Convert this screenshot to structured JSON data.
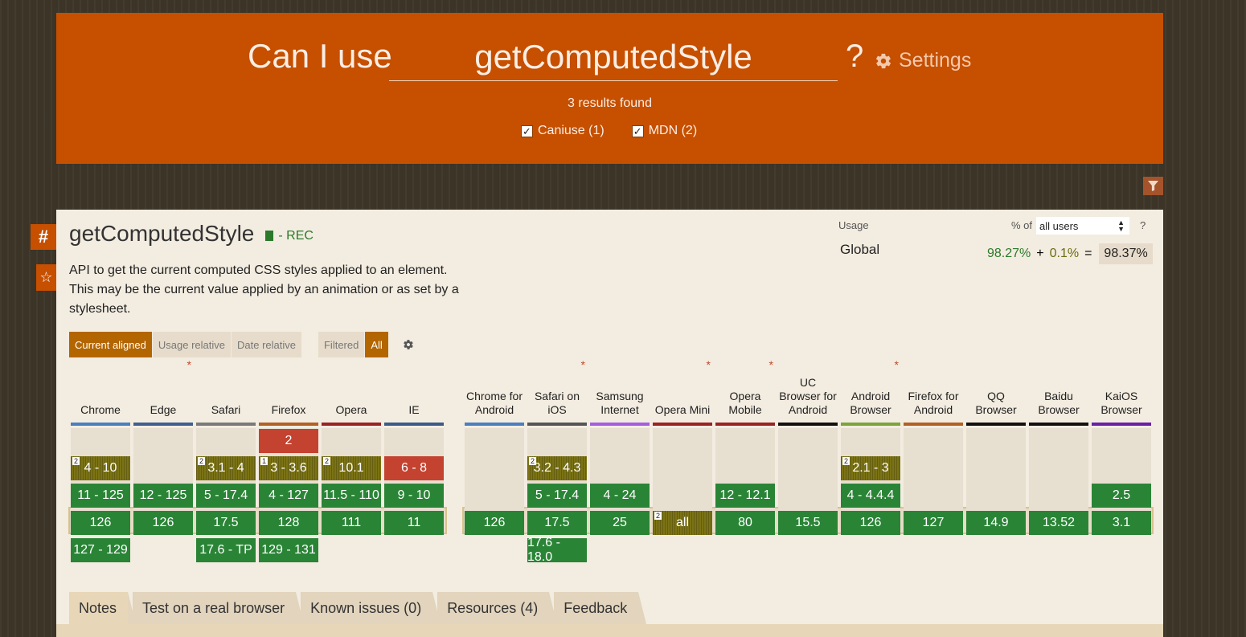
{
  "header": {
    "label": "Can I use",
    "search_value": "getComputedStyle",
    "qmark": "?",
    "settings_label": "Settings",
    "results": "3 results found",
    "filters": [
      {
        "label": "Caniuse (1)",
        "checked": true
      },
      {
        "label": "MDN (2)",
        "checked": true
      }
    ]
  },
  "side": {
    "anchor": "#",
    "star": "☆"
  },
  "feature": {
    "title": "getComputedStyle",
    "spec": "- REC",
    "description": "API to get the current computed CSS styles applied to an element. This may be the current value applied by an animation or as set by a stylesheet."
  },
  "usage": {
    "label": "Usage",
    "pct_of": "% of",
    "users_option": "all users",
    "help": "?",
    "region": "Global",
    "supported": "98.27%",
    "plus": "+",
    "partial": "0.1%",
    "equals": "=",
    "total": "98.37%"
  },
  "views": {
    "current": "Current aligned",
    "usage_rel": "Usage relative",
    "date_rel": "Date relative",
    "filtered": "Filtered",
    "all": "All"
  },
  "browsers": [
    {
      "name": "Chrome",
      "color": "#4a7fbf",
      "asterisk": false,
      "cells": [
        {
          "label": "4 - 10",
          "status": "a",
          "note": "2",
          "row": 1
        },
        {
          "label": "11 - 125",
          "status": "y",
          "row": 2
        },
        {
          "label": "126",
          "status": "y",
          "row": 3
        },
        {
          "label": "127 - 129",
          "status": "y",
          "row": 4
        }
      ]
    },
    {
      "name": "Edge",
      "color": "#3e5f8f",
      "asterisk": true,
      "cells": [
        {
          "label": "12 - 125",
          "status": "y",
          "row": 2
        },
        {
          "label": "126",
          "status": "y",
          "row": 3
        }
      ]
    },
    {
      "name": "Safari",
      "color": "#7a7a7a",
      "asterisk": false,
      "cells": [
        {
          "label": "3.1 - 4",
          "status": "a",
          "note": "2",
          "row": 1
        },
        {
          "label": "5 - 17.4",
          "status": "y",
          "row": 2
        },
        {
          "label": "17.5",
          "status": "y",
          "row": 3
        },
        {
          "label": "17.6 - TP",
          "status": "y",
          "row": 4
        }
      ]
    },
    {
      "name": "Firefox",
      "color": "#b26024",
      "asterisk": false,
      "cells": [
        {
          "label": "2",
          "status": "n",
          "row": 0
        },
        {
          "label": "3 - 3.6",
          "status": "a",
          "note": "1",
          "row": 1
        },
        {
          "label": "4 - 127",
          "status": "y",
          "row": 2
        },
        {
          "label": "128",
          "status": "y",
          "row": 3
        },
        {
          "label": "129 - 131",
          "status": "y",
          "row": 4
        }
      ]
    },
    {
      "name": "Opera",
      "color": "#9b2222",
      "asterisk": false,
      "cells": [
        {
          "label": "10.1",
          "status": "a",
          "note": "2",
          "row": 1
        },
        {
          "label": "11.5 - 110",
          "status": "y",
          "row": 2
        },
        {
          "label": "111",
          "status": "y",
          "row": 3
        }
      ]
    },
    {
      "name": "IE",
      "color": "#3b5a8a",
      "asterisk": false,
      "cells": [
        {
          "label": "6 - 8",
          "status": "n",
          "row": 1
        },
        {
          "label": "9 - 10",
          "status": "y",
          "row": 2
        },
        {
          "label": "11",
          "status": "y",
          "row": 3
        }
      ]
    },
    {
      "name": "Chrome for Android",
      "color": "#4a7fbf",
      "asterisk": false,
      "cells": [
        {
          "label": "126",
          "status": "y",
          "row": 3
        }
      ]
    },
    {
      "name": "Safari on iOS",
      "color": "#555555",
      "asterisk": true,
      "cells": [
        {
          "label": "3.2 - 4.3",
          "status": "a",
          "note": "2",
          "row": 1
        },
        {
          "label": "5 - 17.4",
          "status": "y",
          "row": 2
        },
        {
          "label": "17.5",
          "status": "y",
          "row": 3
        },
        {
          "label": "17.6 - 18.0",
          "status": "y",
          "row": 4
        }
      ]
    },
    {
      "name": "Samsung Internet",
      "color": "#a35ee0",
      "asterisk": false,
      "cells": [
        {
          "label": "4 - 24",
          "status": "y",
          "row": 2
        },
        {
          "label": "25",
          "status": "y",
          "row": 3
        }
      ]
    },
    {
      "name": "Opera Mini",
      "color": "#9b2222",
      "asterisk": true,
      "cells": [
        {
          "label": "all",
          "status": "a",
          "note": "2",
          "row": 3
        }
      ]
    },
    {
      "name": "Opera Mobile",
      "color": "#9b2222",
      "asterisk": true,
      "cells": [
        {
          "label": "12 - 12.1",
          "status": "y",
          "row": 2
        },
        {
          "label": "80",
          "status": "y",
          "row": 3
        }
      ]
    },
    {
      "name": "UC Browser for Android",
      "color": "#111111",
      "asterisk": false,
      "cells": [
        {
          "label": "15.5",
          "status": "y",
          "row": 3
        }
      ]
    },
    {
      "name": "Android Browser",
      "color": "#7ca43a",
      "asterisk": true,
      "cells": [
        {
          "label": "2.1 - 3",
          "status": "a",
          "note": "2",
          "row": 1
        },
        {
          "label": "4 - 4.4.4",
          "status": "y",
          "row": 2
        },
        {
          "label": "126",
          "status": "y",
          "row": 3
        }
      ]
    },
    {
      "name": "Firefox for Android",
      "color": "#b26024",
      "asterisk": false,
      "cells": [
        {
          "label": "127",
          "status": "y",
          "row": 3
        }
      ]
    },
    {
      "name": "QQ Browser",
      "color": "#111111",
      "asterisk": false,
      "cells": [
        {
          "label": "14.9",
          "status": "y",
          "row": 3
        }
      ]
    },
    {
      "name": "Baidu Browser",
      "color": "#111111",
      "asterisk": false,
      "cells": [
        {
          "label": "13.52",
          "status": "y",
          "row": 3
        }
      ]
    },
    {
      "name": "KaiOS Browser",
      "color": "#6a1fa8",
      "asterisk": false,
      "cells": [
        {
          "label": "2.5",
          "status": "y",
          "row": 2
        },
        {
          "label": "3.1",
          "status": "y",
          "row": 3
        }
      ]
    }
  ],
  "tabs": [
    "Notes",
    "Test on a real browser",
    "Known issues (0)",
    "Resources (4)",
    "Feedback"
  ]
}
